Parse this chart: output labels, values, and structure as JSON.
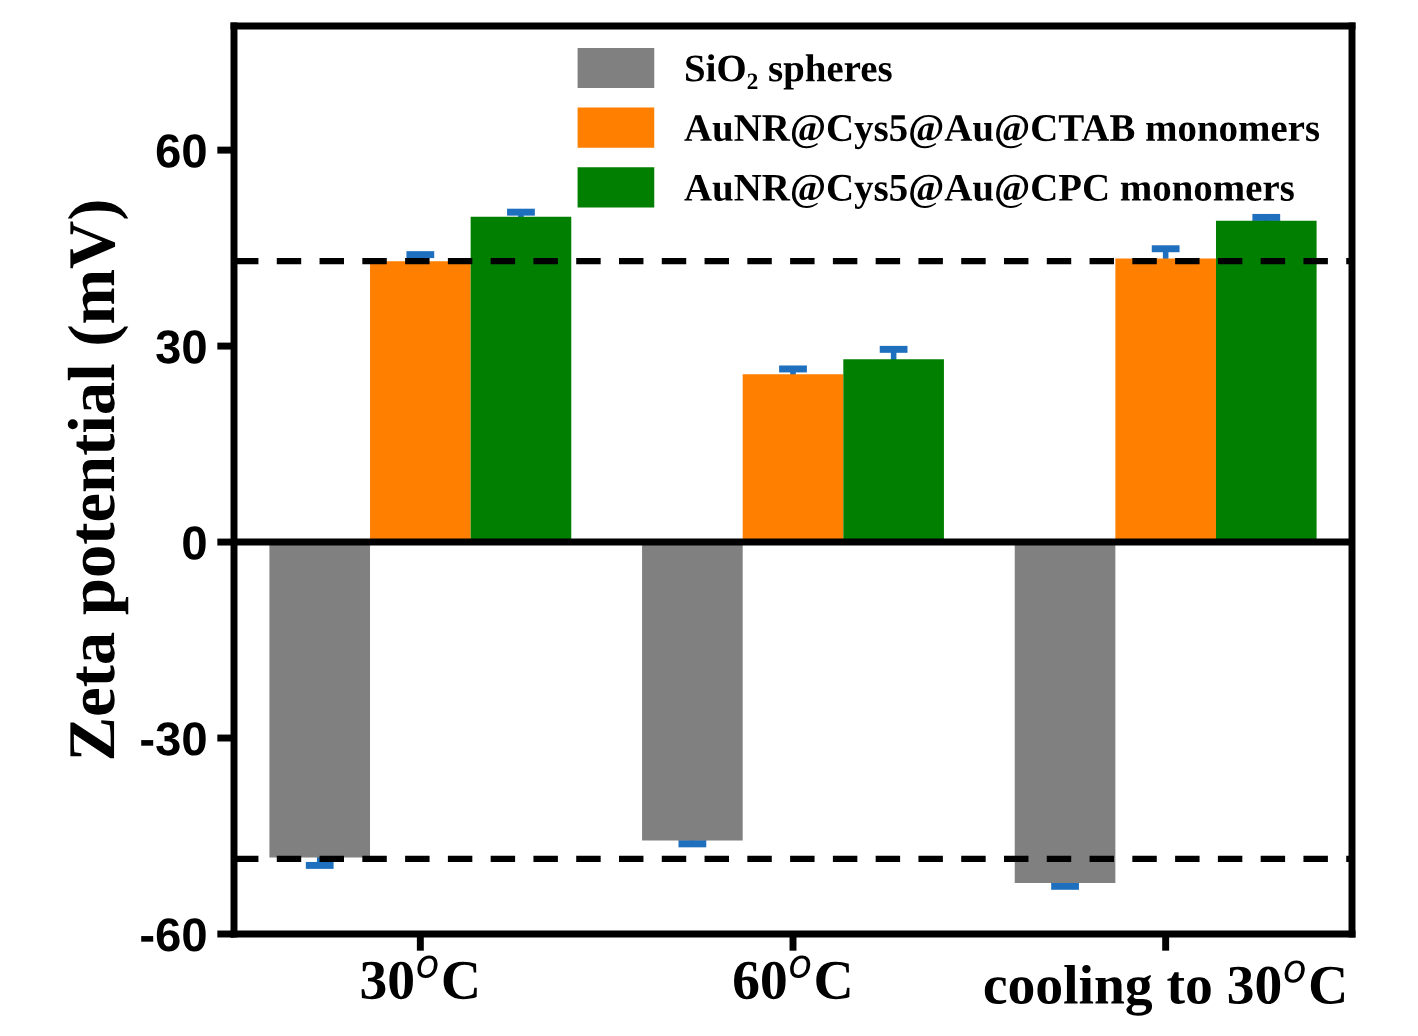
{
  "chart_data": {
    "type": "bar",
    "ylabel": "Zeta potential (mV)",
    "categories": [
      "30$^{o}$C",
      "60$^{o}$C",
      "cooling to 30$^{o}$C"
    ],
    "series": [
      {
        "name": "SiO₂ spheres",
        "color": "#808080",
        "values": [
          -48.3,
          -45.7,
          -52.2
        ],
        "errors": [
          1.2,
          0.5,
          0.5
        ]
      },
      {
        "name": "AuNR@Cys5@Au@CTAB monomers",
        "color": "#ff7f00",
        "values": [
          43,
          25.7,
          43.4
        ],
        "errors": [
          1,
          0.8,
          1.5
        ]
      },
      {
        "name": "AuNR@Cys5@Au@CPC monomers",
        "color": "#007f00",
        "values": [
          49.8,
          28,
          49.2
        ],
        "errors": [
          0.7,
          1.5,
          0.5
        ]
      }
    ],
    "ylim": [
      -60,
      79
    ],
    "yticks": [
      -60,
      -30,
      0,
      30,
      60
    ],
    "grid": false,
    "legend": "top",
    "ref_lines": [
      {
        "axis": "y",
        "value": 43,
        "line_style": "dashed",
        "color": "#000000"
      },
      {
        "axis": "y",
        "value": -48.5,
        "line_style": "dashed",
        "color": "#000000"
      },
      {
        "axis": "y",
        "value": 0,
        "line_style": "solid",
        "color": "#000000"
      }
    ]
  }
}
